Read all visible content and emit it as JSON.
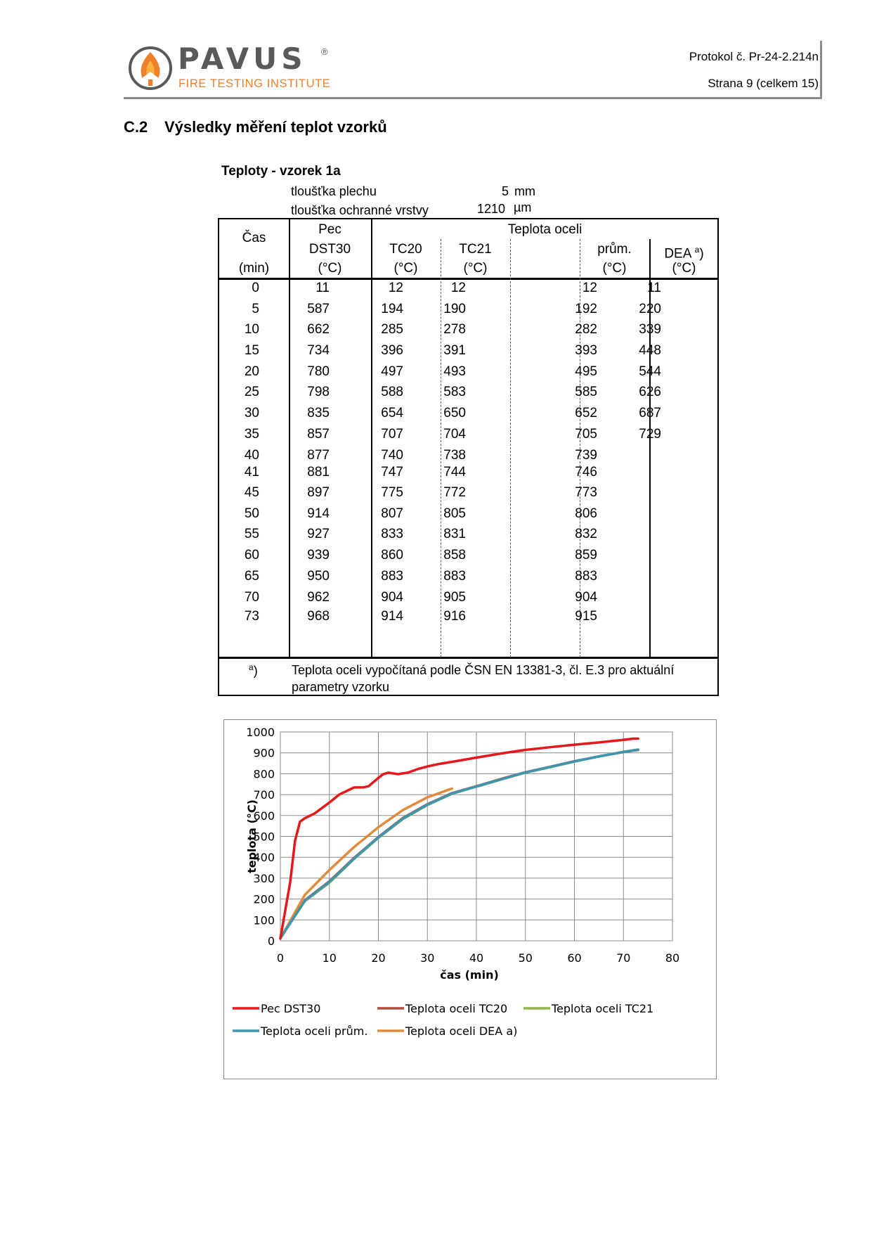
{
  "header": {
    "logo_name": "PAVUS",
    "logo_reg": "®",
    "logo_tagline": "FIRE TESTING INSTITUTE",
    "protocol": "Protokol č. Pr-24-2.214n",
    "page": "Strana 9 (celkem 15)"
  },
  "section": {
    "number": "C.2",
    "title": "Výsledky měření teplot vzorků"
  },
  "table_title": "Teploty - vzorek 1a",
  "params": [
    {
      "label": "tloušťka plechu",
      "value": "5",
      "unit": "mm"
    },
    {
      "label": "tloušťka ochranné vrstvy",
      "value": "1210",
      "unit": "µm"
    }
  ],
  "table": {
    "headers": {
      "time": "Čas",
      "time_unit": "(min)",
      "furnace_top": "Pec",
      "furnace": "DST30",
      "furnace_unit": "(°C)",
      "steel_group": "Teplota oceli",
      "tc20": "TC20",
      "tc20_unit": "(°C)",
      "tc21": "TC21",
      "tc21_unit": "(°C)",
      "avg": "prům.",
      "avg_unit": "(°C)",
      "dea": "DEA",
      "dea_sup": "a",
      "dea_paren": ")",
      "dea_unit": "(°C)"
    },
    "rows": [
      [
        "0",
        "11",
        "12",
        "12",
        "12",
        "11"
      ],
      [
        "5",
        "587",
        "194",
        "190",
        "192",
        "220"
      ],
      [
        "10",
        "662",
        "285",
        "278",
        "282",
        "339"
      ],
      [
        "15",
        "734",
        "396",
        "391",
        "393",
        "448"
      ],
      [
        "20",
        "780",
        "497",
        "493",
        "495",
        "544"
      ],
      [
        "25",
        "798",
        "588",
        "583",
        "585",
        "626"
      ],
      [
        "30",
        "835",
        "654",
        "650",
        "652",
        "687"
      ],
      [
        "35",
        "857",
        "707",
        "704",
        "705",
        "729"
      ],
      [
        "40",
        "877",
        "740",
        "738",
        "739",
        ""
      ],
      [
        "41",
        "881",
        "747",
        "744",
        "746",
        ""
      ],
      [
        "45",
        "897",
        "775",
        "772",
        "773",
        ""
      ],
      [
        "50",
        "914",
        "807",
        "805",
        "806",
        ""
      ],
      [
        "55",
        "927",
        "833",
        "831",
        "832",
        ""
      ],
      [
        "60",
        "939",
        "860",
        "858",
        "859",
        ""
      ],
      [
        "65",
        "950",
        "883",
        "883",
        "883",
        ""
      ],
      [
        "70",
        "962",
        "904",
        "905",
        "904",
        ""
      ],
      [
        "73",
        "968",
        "914",
        "916",
        "915",
        ""
      ]
    ],
    "footnote_mark": "a",
    "footnote_paren": ")",
    "footnote_line1": "Teplota oceli vypočítaná podle ČSN EN 13381-3, čl. E.3 pro aktuální",
    "footnote_line2": "parametry vzorku"
  },
  "chart_data": {
    "type": "line",
    "xlabel": "čas (min)",
    "ylabel": "teplota (°C)",
    "xlim": [
      0,
      80
    ],
    "ylim": [
      0,
      1000
    ],
    "xticks": [
      0,
      10,
      20,
      30,
      40,
      50,
      60,
      70,
      80
    ],
    "yticks": [
      0,
      100,
      200,
      300,
      400,
      500,
      600,
      700,
      800,
      900,
      1000
    ],
    "grid": true,
    "legend_position": "bottom",
    "series": [
      {
        "name": "Pec DST30",
        "color": "#e8171b",
        "x": [
          0,
          2,
          3,
          4,
          5,
          7,
          10,
          12,
          15,
          17,
          18,
          20,
          21,
          22,
          24,
          26,
          28,
          30,
          32,
          35,
          40,
          45,
          50,
          55,
          60,
          65,
          70,
          72,
          73
        ],
        "y": [
          11,
          280,
          480,
          570,
          587,
          610,
          662,
          700,
          734,
          735,
          740,
          780,
          798,
          805,
          798,
          805,
          822,
          835,
          845,
          857,
          877,
          897,
          914,
          927,
          939,
          950,
          962,
          968,
          968
        ]
      },
      {
        "name": "Teplota oceli TC20",
        "color": "#b54a3c",
        "x": [
          0,
          5,
          10,
          15,
          20,
          25,
          30,
          35,
          40,
          41,
          45,
          50,
          55,
          60,
          65,
          70,
          73
        ],
        "y": [
          12,
          194,
          285,
          396,
          497,
          588,
          654,
          707,
          740,
          747,
          775,
          807,
          833,
          860,
          883,
          904,
          914
        ]
      },
      {
        "name": "Teplota oceli TC21",
        "color": "#8cb54a",
        "x": [
          0,
          5,
          10,
          15,
          20,
          25,
          30,
          35,
          40,
          41,
          45,
          50,
          55,
          60,
          65,
          70,
          73
        ],
        "y": [
          12,
          190,
          278,
          391,
          493,
          583,
          650,
          704,
          738,
          744,
          772,
          805,
          831,
          858,
          883,
          905,
          916
        ]
      },
      {
        "name": "Teplota oceli prům.",
        "color": "#3d95b0",
        "x": [
          0,
          5,
          10,
          15,
          20,
          25,
          30,
          35,
          40,
          41,
          45,
          50,
          55,
          60,
          65,
          70,
          73
        ],
        "y": [
          12,
          192,
          282,
          393,
          495,
          585,
          652,
          705,
          739,
          746,
          773,
          806,
          832,
          859,
          883,
          904,
          915
        ]
      },
      {
        "name": "Teplota oceli DEA a)",
        "color": "#e08a3c",
        "x": [
          0,
          5,
          10,
          15,
          20,
          25,
          30,
          35
        ],
        "y": [
          11,
          220,
          339,
          448,
          544,
          626,
          687,
          729
        ]
      }
    ]
  }
}
